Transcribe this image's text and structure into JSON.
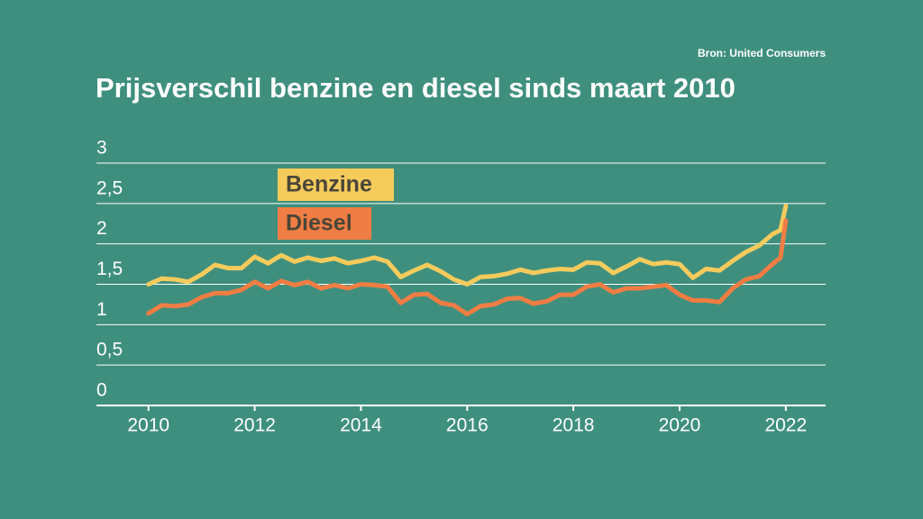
{
  "chart_data": {
    "type": "line",
    "title": "Prijsverschil benzine en diesel sinds maart 2010",
    "source": "Bron: United Consumers",
    "x": [
      2010,
      2010.25,
      2010.5,
      2010.75,
      2011,
      2011.25,
      2011.5,
      2011.75,
      2012,
      2012.25,
      2012.5,
      2012.75,
      2013,
      2013.25,
      2013.5,
      2013.75,
      2014,
      2014.25,
      2014.5,
      2014.75,
      2015,
      2015.25,
      2015.5,
      2015.75,
      2016,
      2016.25,
      2016.5,
      2016.75,
      2017,
      2017.25,
      2017.5,
      2017.75,
      2018,
      2018.25,
      2018.5,
      2018.75,
      2019,
      2019.25,
      2019.5,
      2019.75,
      2020,
      2020.25,
      2020.5,
      2020.75,
      2021,
      2021.25,
      2021.5,
      2021.75,
      2021.9,
      2022
    ],
    "series": [
      {
        "name": "Benzine",
        "color": "#f5cb5c",
        "values": [
          1.5,
          1.57,
          1.56,
          1.53,
          1.62,
          1.74,
          1.7,
          1.7,
          1.84,
          1.76,
          1.86,
          1.78,
          1.83,
          1.79,
          1.82,
          1.76,
          1.79,
          1.83,
          1.78,
          1.59,
          1.67,
          1.74,
          1.66,
          1.56,
          1.5,
          1.59,
          1.6,
          1.63,
          1.68,
          1.64,
          1.67,
          1.69,
          1.68,
          1.77,
          1.76,
          1.64,
          1.72,
          1.81,
          1.75,
          1.77,
          1.75,
          1.58,
          1.69,
          1.67,
          1.79,
          1.9,
          1.98,
          2.12,
          2.17,
          2.47
        ]
      },
      {
        "name": "Diesel",
        "color": "#f07d43",
        "values": [
          1.14,
          1.24,
          1.23,
          1.25,
          1.34,
          1.39,
          1.39,
          1.43,
          1.53,
          1.45,
          1.54,
          1.49,
          1.53,
          1.45,
          1.49,
          1.45,
          1.5,
          1.49,
          1.47,
          1.27,
          1.37,
          1.38,
          1.27,
          1.24,
          1.13,
          1.23,
          1.25,
          1.32,
          1.33,
          1.26,
          1.29,
          1.37,
          1.37,
          1.47,
          1.5,
          1.4,
          1.45,
          1.45,
          1.47,
          1.49,
          1.37,
          1.3,
          1.3,
          1.28,
          1.45,
          1.56,
          1.6,
          1.75,
          1.83,
          2.29
        ]
      }
    ],
    "xlim": [
      2009.02,
      2022.75
    ],
    "xticks": [
      2010,
      2012,
      2014,
      2016,
      2018,
      2020,
      2022
    ],
    "ylim": [
      0,
      3
    ],
    "yticks": [
      0,
      {
        "value": 0.5,
        "label": "0,5"
      },
      1,
      {
        "value": 1.5,
        "label": "1,5"
      },
      2,
      {
        "value": 2.5,
        "label": "2,5"
      },
      3
    ],
    "grid": true
  }
}
